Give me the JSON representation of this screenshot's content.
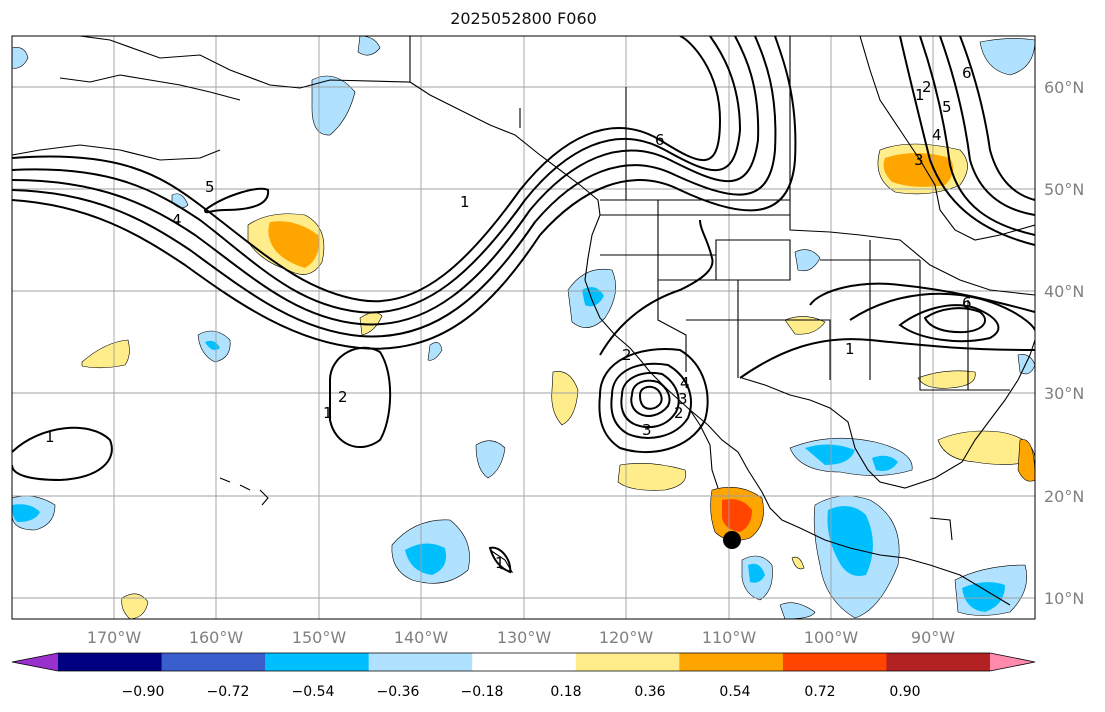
{
  "title": "2025052800 F060",
  "lon_labels": [
    "170°W",
    "160°W",
    "150°W",
    "140°W",
    "130°W",
    "120°W",
    "110°W",
    "100°W",
    "90°W"
  ],
  "lat_labels": [
    "60°N",
    "50°N",
    "40°N",
    "30°N",
    "20°N",
    "10°N"
  ],
  "colorbar": {
    "ticks": [
      "−0.90",
      "−0.72",
      "−0.54",
      "−0.36",
      "−0.18",
      "0.18",
      "0.36",
      "0.54",
      "0.72",
      "0.90"
    ],
    "colors": [
      "#9932cc",
      "#000080",
      "#3a5fcd",
      "#00bfff",
      "#b0e2ff",
      "#ffffff",
      "#ffec8b",
      "#ffa500",
      "#ff4500",
      "#b22222",
      "#ff8aab"
    ]
  },
  "contour_labels": [
    "6",
    "5",
    "4",
    "3",
    "2",
    "1",
    "6",
    "5",
    "4",
    "3",
    "2",
    "1",
    "1",
    "2",
    "1",
    "1",
    "2",
    "3",
    "4",
    "6",
    "1"
  ],
  "marker": "storm-position"
}
